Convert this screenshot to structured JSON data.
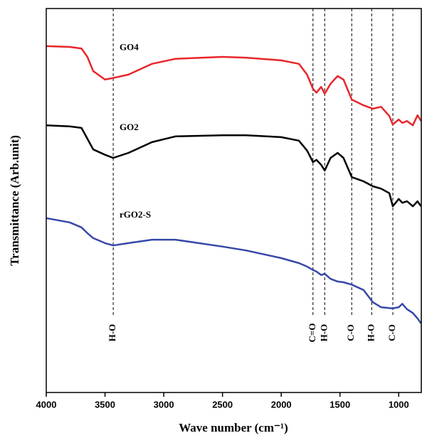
{
  "chart_data": {
    "type": "line",
    "xlabel": "Wave number (cm⁻¹)",
    "ylabel": "Transmittance (Arb.unit)",
    "xlim": [
      4000,
      808
    ],
    "xticks": [
      4000,
      3500,
      3000,
      2500,
      2000,
      1500,
      1000
    ],
    "ylim": [
      0,
      100
    ],
    "x": [
      4000,
      3800,
      3700,
      3650,
      3600,
      3500,
      3430,
      3300,
      3100,
      2900,
      2500,
      2300,
      2000,
      1850,
      1780,
      1730,
      1700,
      1660,
      1630,
      1580,
      1520,
      1470,
      1400,
      1300,
      1220,
      1150,
      1080,
      1050,
      1000,
      970,
      930,
      880,
      840,
      810
    ],
    "series": [
      {
        "name": "GO4",
        "color": "#e8262a",
        "values": [
          90.2,
          90,
          89.6,
          87.4,
          83.7,
          81.5,
          81.9,
          82.8,
          85.6,
          86.9,
          87.4,
          87.2,
          86.5,
          85.6,
          82.8,
          79.1,
          78.1,
          79.6,
          77.8,
          80.4,
          82.4,
          81.5,
          76.3,
          74.8,
          73.9,
          74.4,
          72,
          69.8,
          71.1,
          70.2,
          70.7,
          69.6,
          72.2,
          70.7
        ]
      },
      {
        "name": "GO2",
        "color": "#000000",
        "values": [
          69.6,
          69.3,
          68.9,
          66.1,
          63.3,
          61.9,
          61.1,
          62.4,
          65.2,
          66.7,
          67.0,
          67.0,
          66.5,
          65.6,
          63.0,
          60.0,
          60.6,
          59.3,
          57.8,
          61.1,
          62.4,
          61.1,
          56.1,
          55.0,
          53.7,
          53.1,
          51.9,
          48.5,
          50.4,
          49.4,
          49.8,
          48.5,
          49.8,
          48.5
        ]
      },
      {
        "name": "rGO2-S",
        "color": "#3748a8",
        "values": [
          45.4,
          44.3,
          43.0,
          41.5,
          40.2,
          38.9,
          38.3,
          38.9,
          39.8,
          39.8,
          38.0,
          37.0,
          35.0,
          33.7,
          32.8,
          31.9,
          31.5,
          30.6,
          30.9,
          29.6,
          28.9,
          28.7,
          28.1,
          26.7,
          23.5,
          22.2,
          22.0,
          21.9,
          22.2,
          23.1,
          21.7,
          20.7,
          19.3,
          18.0
        ]
      }
    ],
    "annotations": [
      {
        "x": 3430,
        "label": "H-O"
      },
      {
        "x": 1730,
        "label": "C=O"
      },
      {
        "x": 1630,
        "label": "H-O"
      },
      {
        "x": 1400,
        "label": "C-O"
      },
      {
        "x": 1230,
        "label": "H-O"
      },
      {
        "x": 1050,
        "label": "C-O"
      }
    ]
  }
}
